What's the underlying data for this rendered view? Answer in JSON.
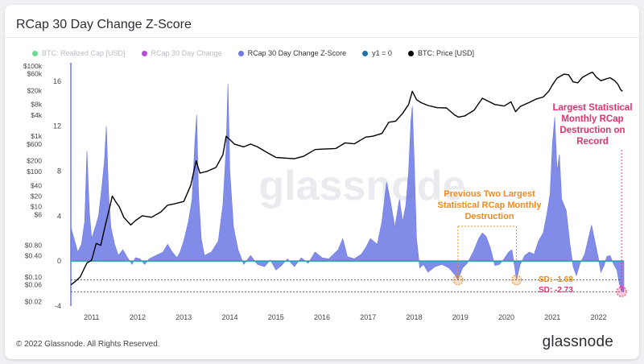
{
  "title": "RCap 30 Day Change Z-Score",
  "footer": {
    "copyright": "© 2022 Glassnode. All Rights Reserved.",
    "brand": "glassnode"
  },
  "watermark": "glassnode",
  "colors": {
    "zscore": "#6b78e5",
    "price": "#000000",
    "y1": "#1aa3a3",
    "orange": "#f08a1e",
    "pink": "#e8306e",
    "realized_cap": "#6fd88f",
    "rcap_change": "#b24fd1"
  },
  "legend": [
    {
      "label": "BTC: Realized Cap [USD]",
      "color": "#6fd88f",
      "active": false
    },
    {
      "label": "RCap 30 Day Change",
      "color": "#b24fd1",
      "active": false
    },
    {
      "label": "RCap 30 Day Change Z-Score",
      "color": "#6b78e5",
      "active": true
    },
    {
      "label": "y1 = 0",
      "color": "#1f6fa8",
      "active": true
    },
    {
      "label": "BTC: Price [USD]",
      "color": "#000000",
      "active": true
    }
  ],
  "annotations": {
    "previous": "Previous Two Largest Statistical RCap Monthly Destruction",
    "largest": "Largest Statistical Monthly RCap Destruction on Record",
    "sd1": "SD: -1.68",
    "sd2": "SD: -2.73"
  },
  "chart_data": {
    "type": "area",
    "title": "RCap 30 Day Change Z-Score",
    "x_ticks": [
      "2011",
      "2012",
      "2013",
      "2014",
      "2015",
      "2016",
      "2017",
      "2018",
      "2019",
      "2020",
      "2021",
      "2022"
    ],
    "x_range": [
      2010.55,
      2022.55
    ],
    "left_axis": {
      "ticks": [
        "$100k",
        "$60k",
        "$20k",
        "$8k",
        "$4k",
        "$1k",
        "$600",
        "$200",
        "$100",
        "$40",
        "$20",
        "$10",
        "$6",
        "$0.80",
        "$0.40",
        "$0.10",
        "$0.06",
        "$0.02"
      ],
      "scale": "log"
    },
    "right_axis": {
      "ticks": [
        "16",
        "12",
        "8",
        "4",
        "0",
        "-4"
      ],
      "ylim": [
        -4,
        17.5
      ]
    },
    "series": [
      {
        "name": "RCap 30 Day Change Z-Score",
        "axis": "right",
        "points": [
          [
            2010.55,
            3.0
          ],
          [
            2010.62,
            2.0
          ],
          [
            2010.7,
            0.8
          ],
          [
            2010.78,
            1.5
          ],
          [
            2010.85,
            3.5
          ],
          [
            2010.9,
            9.8
          ],
          [
            2010.95,
            4.5
          ],
          [
            2011.0,
            2.0
          ],
          [
            2011.08,
            3.0
          ],
          [
            2011.15,
            4.0
          ],
          [
            2011.22,
            6.5
          ],
          [
            2011.28,
            9.0
          ],
          [
            2011.32,
            12.0
          ],
          [
            2011.37,
            6.0
          ],
          [
            2011.42,
            3.0
          ],
          [
            2011.5,
            1.5
          ],
          [
            2011.58,
            0.5
          ],
          [
            2011.68,
            1.0
          ],
          [
            2011.78,
            0.3
          ],
          [
            2011.88,
            -0.3
          ],
          [
            2011.95,
            0.3
          ],
          [
            2012.05,
            0.2
          ],
          [
            2012.15,
            -0.3
          ],
          [
            2012.25,
            0.2
          ],
          [
            2012.4,
            0.5
          ],
          [
            2012.55,
            0.8
          ],
          [
            2012.65,
            1.5
          ],
          [
            2012.75,
            0.8
          ],
          [
            2012.85,
            0.3
          ],
          [
            2012.92,
            0.8
          ],
          [
            2013.0,
            1.8
          ],
          [
            2013.1,
            3.5
          ],
          [
            2013.18,
            5.5
          ],
          [
            2013.24,
            10.5
          ],
          [
            2013.28,
            13.0
          ],
          [
            2013.32,
            6.0
          ],
          [
            2013.38,
            2.0
          ],
          [
            2013.45,
            0.5
          ],
          [
            2013.6,
            0.8
          ],
          [
            2013.75,
            1.8
          ],
          [
            2013.85,
            5.0
          ],
          [
            2013.92,
            10.0
          ],
          [
            2013.96,
            15.8
          ],
          [
            2014.0,
            8.0
          ],
          [
            2014.08,
            3.0
          ],
          [
            2014.18,
            1.0
          ],
          [
            2014.3,
            -0.3
          ],
          [
            2014.45,
            0.5
          ],
          [
            2014.6,
            -0.3
          ],
          [
            2014.75,
            -0.5
          ],
          [
            2014.88,
            0.1
          ],
          [
            2015.0,
            -0.8
          ],
          [
            2015.12,
            -0.4
          ],
          [
            2015.25,
            0.2
          ],
          [
            2015.4,
            -0.5
          ],
          [
            2015.55,
            0.3
          ],
          [
            2015.7,
            -0.2
          ],
          [
            2015.85,
            0.8
          ],
          [
            2016.0,
            0.3
          ],
          [
            2016.15,
            0.2
          ],
          [
            2016.35,
            1.0
          ],
          [
            2016.45,
            2.0
          ],
          [
            2016.55,
            0.4
          ],
          [
            2016.7,
            0.2
          ],
          [
            2016.85,
            0.6
          ],
          [
            2016.95,
            1.2
          ],
          [
            2017.05,
            2.0
          ],
          [
            2017.2,
            1.5
          ],
          [
            2017.3,
            3.5
          ],
          [
            2017.4,
            7.0
          ],
          [
            2017.48,
            5.5
          ],
          [
            2017.58,
            3.0
          ],
          [
            2017.68,
            5.5
          ],
          [
            2017.75,
            3.5
          ],
          [
            2017.82,
            5.0
          ],
          [
            2017.88,
            8.0
          ],
          [
            2017.93,
            12.5
          ],
          [
            2017.96,
            13.8
          ],
          [
            2018.0,
            9.0
          ],
          [
            2018.05,
            2.0
          ],
          [
            2018.12,
            -0.6
          ],
          [
            2018.2,
            -0.3
          ],
          [
            2018.3,
            -1.0
          ],
          [
            2018.45,
            -0.5
          ],
          [
            2018.6,
            -0.3
          ],
          [
            2018.75,
            -0.6
          ],
          [
            2018.88,
            -1.2
          ],
          [
            2018.95,
            -1.68
          ],
          [
            2019.05,
            -0.6
          ],
          [
            2019.15,
            -0.2
          ],
          [
            2019.28,
            0.8
          ],
          [
            2019.4,
            2.0
          ],
          [
            2019.48,
            2.5
          ],
          [
            2019.56,
            2.2
          ],
          [
            2019.65,
            1.2
          ],
          [
            2019.75,
            -0.4
          ],
          [
            2019.85,
            -0.3
          ],
          [
            2019.95,
            0.2
          ],
          [
            2020.05,
            0.8
          ],
          [
            2020.12,
            1.0
          ],
          [
            2020.18,
            -0.5
          ],
          [
            2020.22,
            -1.68
          ],
          [
            2020.3,
            -0.3
          ],
          [
            2020.4,
            0.5
          ],
          [
            2020.5,
            0.8
          ],
          [
            2020.6,
            0.6
          ],
          [
            2020.7,
            1.8
          ],
          [
            2020.8,
            2.5
          ],
          [
            2020.88,
            4.2
          ],
          [
            2020.95,
            6.0
          ],
          [
            2021.0,
            10.5
          ],
          [
            2021.05,
            12.8
          ],
          [
            2021.1,
            8.0
          ],
          [
            2021.15,
            9.5
          ],
          [
            2021.2,
            5.5
          ],
          [
            2021.3,
            4.5
          ],
          [
            2021.38,
            1.5
          ],
          [
            2021.45,
            -0.5
          ],
          [
            2021.52,
            -1.3
          ],
          [
            2021.6,
            -0.2
          ],
          [
            2021.7,
            0.6
          ],
          [
            2021.78,
            2.0
          ],
          [
            2021.85,
            3.2
          ],
          [
            2021.92,
            1.8
          ],
          [
            2022.0,
            0.2
          ],
          [
            2022.05,
            -1.0
          ],
          [
            2022.12,
            -0.4
          ],
          [
            2022.18,
            0.4
          ],
          [
            2022.25,
            0.5
          ],
          [
            2022.32,
            -0.2
          ],
          [
            2022.4,
            -0.8
          ],
          [
            2022.45,
            -2.0
          ],
          [
            2022.5,
            -2.73
          ],
          [
            2022.55,
            -2.73
          ]
        ]
      },
      {
        "name": "BTC: Price [USD]",
        "axis": "left",
        "points": [
          [
            2010.55,
            0.06
          ],
          [
            2010.62,
            0.07
          ],
          [
            2010.75,
            0.1
          ],
          [
            2010.9,
            0.25
          ],
          [
            2011.0,
            0.3
          ],
          [
            2011.1,
            0.9
          ],
          [
            2011.2,
            0.8
          ],
          [
            2011.3,
            3.0
          ],
          [
            2011.38,
            8.0
          ],
          [
            2011.45,
            20.0
          ],
          [
            2011.52,
            14.0
          ],
          [
            2011.6,
            10.0
          ],
          [
            2011.7,
            5.0
          ],
          [
            2011.85,
            3.0
          ],
          [
            2011.95,
            4.0
          ],
          [
            2012.1,
            5.5
          ],
          [
            2012.3,
            5.0
          ],
          [
            2012.5,
            7.0
          ],
          [
            2012.65,
            11.0
          ],
          [
            2012.8,
            12.0
          ],
          [
            2013.0,
            14.0
          ],
          [
            2013.15,
            40.0
          ],
          [
            2013.27,
            200.0
          ],
          [
            2013.35,
            90.0
          ],
          [
            2013.5,
            100.0
          ],
          [
            2013.7,
            130.0
          ],
          [
            2013.85,
            300.0
          ],
          [
            2013.92,
            1000.0
          ],
          [
            2014.0,
            800.0
          ],
          [
            2014.1,
            600.0
          ],
          [
            2014.3,
            500.0
          ],
          [
            2014.45,
            600.0
          ],
          [
            2014.6,
            500.0
          ],
          [
            2014.8,
            350.0
          ],
          [
            2015.0,
            250.0
          ],
          [
            2015.2,
            240.0
          ],
          [
            2015.4,
            230.0
          ],
          [
            2015.6,
            270.0
          ],
          [
            2015.85,
            420.0
          ],
          [
            2016.0,
            430.0
          ],
          [
            2016.3,
            450.0
          ],
          [
            2016.5,
            650.0
          ],
          [
            2016.7,
            610.0
          ],
          [
            2016.95,
            950.0
          ],
          [
            2017.1,
            1000.0
          ],
          [
            2017.3,
            1200.0
          ],
          [
            2017.45,
            2500.0
          ],
          [
            2017.6,
            2700.0
          ],
          [
            2017.75,
            4500.0
          ],
          [
            2017.88,
            8000.0
          ],
          [
            2017.96,
            19000.0
          ],
          [
            2018.05,
            11000.0
          ],
          [
            2018.15,
            9000.0
          ],
          [
            2018.3,
            7500.0
          ],
          [
            2018.5,
            6500.0
          ],
          [
            2018.7,
            6400.0
          ],
          [
            2018.88,
            4000.0
          ],
          [
            2018.96,
            3500.0
          ],
          [
            2019.1,
            3800.0
          ],
          [
            2019.3,
            5500.0
          ],
          [
            2019.48,
            12000.0
          ],
          [
            2019.6,
            10000.0
          ],
          [
            2019.75,
            8000.0
          ],
          [
            2019.95,
            7200.0
          ],
          [
            2020.1,
            9500.0
          ],
          [
            2020.2,
            5000.0
          ],
          [
            2020.3,
            7000.0
          ],
          [
            2020.5,
            9200.0
          ],
          [
            2020.65,
            11500.0
          ],
          [
            2020.8,
            13000.0
          ],
          [
            2020.92,
            19000.0
          ],
          [
            2021.0,
            29000.0
          ],
          [
            2021.1,
            45000.0
          ],
          [
            2021.25,
            58000.0
          ],
          [
            2021.35,
            56000.0
          ],
          [
            2021.45,
            35000.0
          ],
          [
            2021.55,
            33000.0
          ],
          [
            2021.65,
            47000.0
          ],
          [
            2021.8,
            61000.0
          ],
          [
            2021.87,
            66000.0
          ],
          [
            2021.95,
            48000.0
          ],
          [
            2022.05,
            38000.0
          ],
          [
            2022.15,
            42000.0
          ],
          [
            2022.25,
            46000.0
          ],
          [
            2022.35,
            38000.0
          ],
          [
            2022.42,
            30000.0
          ],
          [
            2022.48,
            21000.0
          ],
          [
            2022.52,
            19000.0
          ]
        ]
      }
    ],
    "reference_lines": [
      {
        "name": "y1 = 0",
        "value": 0
      },
      {
        "name": "SD: -1.68",
        "value": -1.68
      },
      {
        "name": "SD: -2.73",
        "value": -2.73
      }
    ],
    "highlighted_points": [
      [
        2018.95,
        -1.68
      ],
      [
        2020.22,
        -1.68
      ],
      [
        2022.5,
        -2.73
      ]
    ],
    "legend_position": "top"
  }
}
